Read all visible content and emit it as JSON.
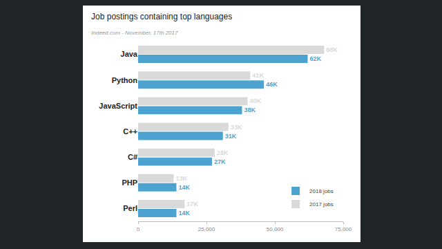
{
  "chart_data": {
    "type": "bar",
    "orientation": "horizontal",
    "title": "Job postings containing top languages",
    "subtitle": "Indeed.com - November, 17th 2017",
    "categories": [
      "Java",
      "Python",
      "JavaScript",
      "C++",
      "C#",
      "PHP",
      "Perl"
    ],
    "series": [
      {
        "name": "2018 jobs",
        "color": "#4da3cf",
        "values": [
          62000,
          46000,
          38000,
          31000,
          27000,
          14000,
          14000
        ],
        "value_labels": [
          "62K",
          "46K",
          "38K",
          "31K",
          "27K",
          "14K",
          "14K"
        ]
      },
      {
        "name": "2017 jobs",
        "color": "#d9d9d9",
        "values": [
          68000,
          41000,
          40000,
          33000,
          28000,
          13000,
          17000
        ],
        "value_labels": [
          "68K",
          "41K",
          "40K",
          "33K",
          "28K",
          "13K",
          "17K"
        ]
      }
    ],
    "xlim": [
      0,
      75000
    ],
    "xticks": [
      0,
      {
        "value": 25000,
        "label": "25,000"
      },
      {
        "value": 50000,
        "label": "50,000"
      },
      {
        "value": 75000,
        "label": "75,000"
      }
    ],
    "data_labels": true,
    "legend": "bottom right",
    "grid": false
  }
}
